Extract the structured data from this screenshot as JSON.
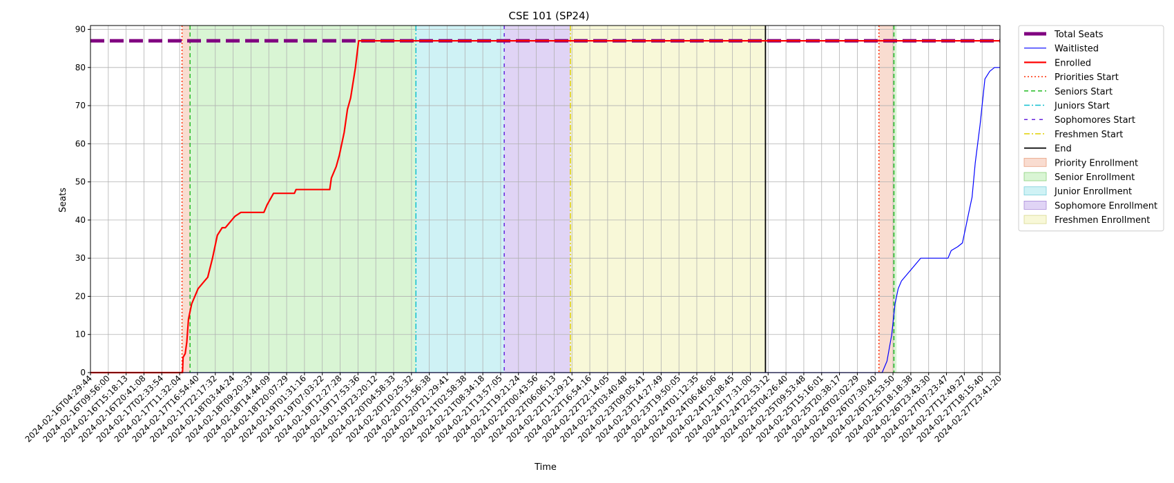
{
  "chart_data": {
    "type": "line",
    "title": "CSE 101 (SP24)",
    "xlabel": "Time",
    "ylabel": "Seats",
    "ylim": [
      0,
      91
    ],
    "yticks": [
      0,
      10,
      20,
      30,
      40,
      50,
      60,
      70,
      80,
      90
    ],
    "grid": true,
    "legend_position": "outside-right",
    "xlim": [
      "2024-02-16T04:29:44",
      "2024-02-27T23:41:20"
    ],
    "xtick_labels": [
      "2024-02-16T04:29:44",
      "2024-02-16T09:56:00",
      "2024-02-16T15:18:13",
      "2024-02-16T20:41:08",
      "2024-02-17T02:33:54",
      "2024-02-17T11:32:04",
      "2024-02-17T16:54:40",
      "2024-02-17T22:17:32",
      "2024-02-18T03:44:24",
      "2024-02-18T09:20:33",
      "2024-02-18T14:44:09",
      "2024-02-18T20:07:29",
      "2024-02-19T01:31:16",
      "2024-02-19T07:03:22",
      "2024-02-19T12:27:28",
      "2024-02-19T17:53:36",
      "2024-02-19T23:20:12",
      "2024-02-20T04:58:33",
      "2024-02-20T10:25:32",
      "2024-02-20T15:56:38",
      "2024-02-20T21:29:41",
      "2024-02-21T02:58:38",
      "2024-02-21T08:34:18",
      "2024-02-21T13:57:05",
      "2024-02-21T19:21:24",
      "2024-02-22T00:43:56",
      "2024-02-22T06:06:13",
      "2024-02-22T11:29:21",
      "2024-02-22T16:54:16",
      "2024-02-22T22:14:05",
      "2024-02-23T03:40:48",
      "2024-02-23T09:05:41",
      "2024-02-23T14:27:49",
      "2024-02-23T19:50:05",
      "2024-02-24T01:12:35",
      "2024-02-24T06:46:06",
      "2024-02-24T12:08:45",
      "2024-02-24T17:31:00",
      "2024-02-24T22:53:12",
      "2024-02-25T04:26:40",
      "2024-02-25T09:53:48",
      "2024-02-25T15:16:01",
      "2024-02-25T20:38:17",
      "2024-02-26T02:02:29",
      "2024-02-26T07:30:40",
      "2024-02-26T12:53:50",
      "2024-02-26T18:18:38",
      "2024-02-26T23:43:30",
      "2024-02-27T07:23:47",
      "2024-02-27T12:49:27",
      "2024-02-27T18:15:40",
      "2024-02-27T23:41:20"
    ],
    "total_seats": 87,
    "regions": [
      {
        "name": "Priority Enrollment",
        "start": "2024-02-17T09:00:00",
        "end": "2024-02-17T11:30:00",
        "color": "#f9dcd0"
      },
      {
        "name": "Senior Enrollment",
        "start": "2024-02-17T11:30:00",
        "end": "2024-02-20T09:50:00",
        "color": "#d9f5d4"
      },
      {
        "name": "Junior Enrollment",
        "start": "2024-02-20T09:50:00",
        "end": "2024-02-21T13:20:00",
        "color": "#cff2f5"
      },
      {
        "name": "Sophomore Enrollment",
        "start": "2024-02-21T13:20:00",
        "end": "2024-02-22T09:55:00",
        "color": "#e0d4f5"
      },
      {
        "name": "Freshmen Enrollment",
        "start": "2024-02-22T09:55:00",
        "end": "2024-02-24T22:40:00",
        "color": "#f8f8d8"
      },
      {
        "name": "Priority Enrollment",
        "start": "2024-02-26T10:00:00",
        "end": "2024-02-26T14:40:00",
        "color": "#f9dcd0"
      },
      {
        "name": "Senior Enrollment",
        "start": "2024-02-26T14:40:00",
        "end": "2024-02-26T15:30:00",
        "color": "#d9f5d4"
      }
    ],
    "vlines": [
      {
        "name": "Priorities Start",
        "x": "2024-02-17T09:00:00",
        "color": "#ff2a00",
        "dash": "2,3"
      },
      {
        "name": "Seniors Start",
        "x": "2024-02-17T11:30:00",
        "color": "#22bb22",
        "dash": "6,4"
      },
      {
        "name": "Juniors Start",
        "x": "2024-02-20T09:50:00",
        "color": "#10c0d0",
        "dash": "8,3,2,3"
      },
      {
        "name": "Sophomores Start",
        "x": "2024-02-21T13:20:00",
        "color": "#6622dd",
        "dash": "5,6"
      },
      {
        "name": "Freshmen Start",
        "x": "2024-02-22T09:55:00",
        "color": "#e0d000",
        "dash": "8,3,2,3"
      },
      {
        "name": "End",
        "x": "2024-02-24T22:40:00",
        "color": "#000000",
        "dash": ""
      },
      {
        "name": "Priorities Start",
        "x": "2024-02-26T10:00:00",
        "color": "#ff2a00",
        "dash": "2,3"
      },
      {
        "name": "Seniors Start",
        "x": "2024-02-26T14:40:00",
        "color": "#22bb22",
        "dash": "6,4"
      }
    ],
    "series": [
      {
        "name": "Enrolled",
        "color": "#ff0000",
        "points": [
          [
            "2024-02-16T04:29:44",
            0
          ],
          [
            "2024-02-17T09:10:00",
            0
          ],
          [
            "2024-02-17T09:20:00",
            4
          ],
          [
            "2024-02-17T10:00:00",
            5
          ],
          [
            "2024-02-17T10:30:00",
            8
          ],
          [
            "2024-02-17T11:00:00",
            14
          ],
          [
            "2024-02-17T12:00:00",
            18
          ],
          [
            "2024-02-17T14:00:00",
            22
          ],
          [
            "2024-02-17T16:00:00",
            24
          ],
          [
            "2024-02-17T17:00:00",
            25
          ],
          [
            "2024-02-17T18:30:00",
            30
          ],
          [
            "2024-02-17T20:00:00",
            36
          ],
          [
            "2024-02-17T21:30:00",
            38
          ],
          [
            "2024-02-17T22:30:00",
            38
          ],
          [
            "2024-02-18T00:30:00",
            40
          ],
          [
            "2024-02-18T01:30:00",
            41
          ],
          [
            "2024-02-18T03:20:00",
            42
          ],
          [
            "2024-02-18T10:30:00",
            42
          ],
          [
            "2024-02-18T11:30:00",
            44
          ],
          [
            "2024-02-18T13:30:00",
            47
          ],
          [
            "2024-02-18T20:00:00",
            47
          ],
          [
            "2024-02-18T20:30:00",
            48
          ],
          [
            "2024-02-19T07:00:00",
            48
          ],
          [
            "2024-02-19T07:30:00",
            51
          ],
          [
            "2024-02-19T09:00:00",
            54
          ],
          [
            "2024-02-19T10:00:00",
            57
          ],
          [
            "2024-02-19T11:30:00",
            63
          ],
          [
            "2024-02-19T12:30:00",
            69
          ],
          [
            "2024-02-19T13:30:00",
            72
          ],
          [
            "2024-02-19T15:00:00",
            80
          ],
          [
            "2024-02-19T16:00:00",
            87
          ],
          [
            "2024-02-27T23:41:20",
            87
          ]
        ]
      },
      {
        "name": "Waitlisted",
        "color": "#0000ff",
        "points": [
          [
            "2024-02-16T04:29:44",
            0
          ],
          [
            "2024-02-26T11:00:00",
            0
          ],
          [
            "2024-02-26T11:30:00",
            1
          ],
          [
            "2024-02-26T12:30:00",
            3
          ],
          [
            "2024-02-26T14:00:00",
            10
          ],
          [
            "2024-02-26T15:00:00",
            18
          ],
          [
            "2024-02-26T16:00:00",
            22
          ],
          [
            "2024-02-26T17:00:00",
            24
          ],
          [
            "2024-02-26T19:00:00",
            26
          ],
          [
            "2024-02-26T21:00:00",
            28
          ],
          [
            "2024-02-26T23:00:00",
            30
          ],
          [
            "2024-02-27T07:30:00",
            30
          ],
          [
            "2024-02-27T08:30:00",
            32
          ],
          [
            "2024-02-27T10:30:00",
            33
          ],
          [
            "2024-02-27T12:00:00",
            34
          ],
          [
            "2024-02-27T13:00:00",
            38
          ],
          [
            "2024-02-27T14:00:00",
            42
          ],
          [
            "2024-02-27T15:00:00",
            46
          ],
          [
            "2024-02-27T16:00:00",
            55
          ],
          [
            "2024-02-27T17:30:00",
            65
          ],
          [
            "2024-02-27T19:00:00",
            77
          ],
          [
            "2024-02-27T20:30:00",
            79
          ],
          [
            "2024-02-27T22:00:00",
            80
          ],
          [
            "2024-02-27T23:41:20",
            80
          ]
        ]
      }
    ],
    "legend": [
      {
        "label": "Total Seats",
        "kind": "line",
        "color": "#800080",
        "width": 5,
        "dash": ""
      },
      {
        "label": "Waitlisted",
        "kind": "line",
        "color": "#0000ff",
        "width": 1.2,
        "dash": ""
      },
      {
        "label": "Enrolled",
        "kind": "line",
        "color": "#ff0000",
        "width": 2.2,
        "dash": ""
      },
      {
        "label": "Priorities Start",
        "kind": "line",
        "color": "#ff2a00",
        "width": 1.5,
        "dash": "2,3"
      },
      {
        "label": "Seniors Start",
        "kind": "line",
        "color": "#22bb22",
        "width": 1.5,
        "dash": "6,4"
      },
      {
        "label": "Juniors Start",
        "kind": "line",
        "color": "#10c0d0",
        "width": 1.5,
        "dash": "8,3,2,3"
      },
      {
        "label": "Sophomores Start",
        "kind": "line",
        "color": "#6622dd",
        "width": 1.5,
        "dash": "5,6"
      },
      {
        "label": "Freshmen Start",
        "kind": "line",
        "color": "#e0d000",
        "width": 1.5,
        "dash": "8,3,2,3"
      },
      {
        "label": "End",
        "kind": "line",
        "color": "#000000",
        "width": 1.8,
        "dash": ""
      },
      {
        "label": "Priority Enrollment",
        "kind": "patch",
        "color": "#f9dcd0",
        "edge": "#e8a080"
      },
      {
        "label": "Senior Enrollment",
        "kind": "patch",
        "color": "#d9f5d4",
        "edge": "#8ad07a"
      },
      {
        "label": "Junior Enrollment",
        "kind": "patch",
        "color": "#cff2f5",
        "edge": "#7ad0da"
      },
      {
        "label": "Sophomore Enrollment",
        "kind": "patch",
        "color": "#e0d4f5",
        "edge": "#a88ad8"
      },
      {
        "label": "Freshmen Enrollment",
        "kind": "patch",
        "color": "#f8f8d8",
        "edge": "#d8d890"
      }
    ]
  }
}
